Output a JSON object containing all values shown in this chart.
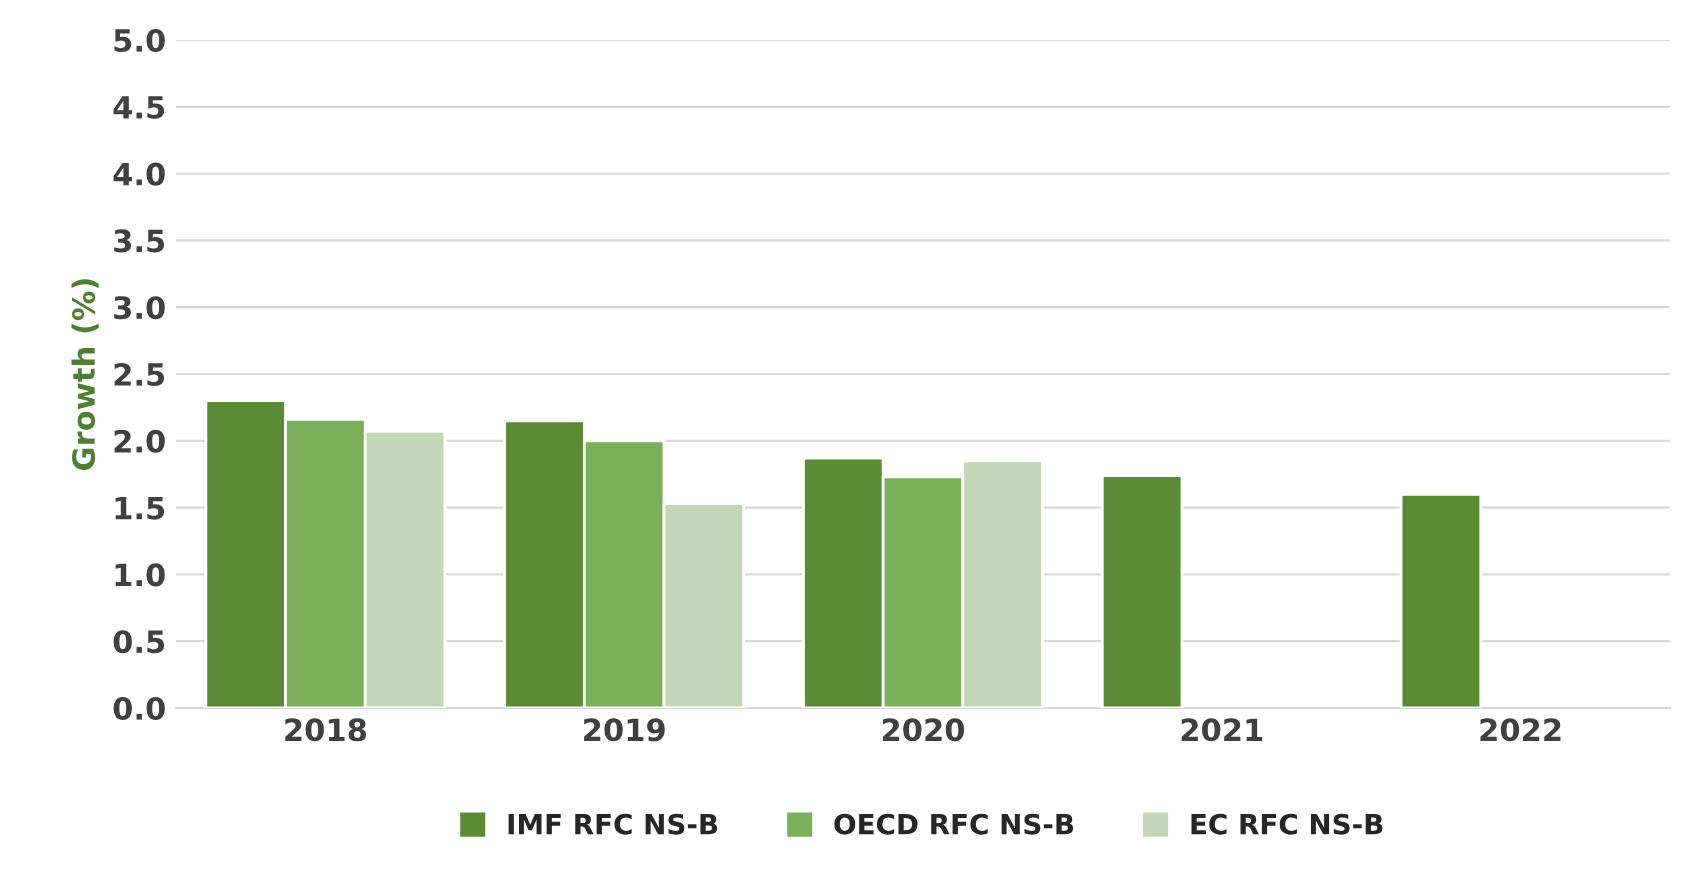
{
  "chart_data": {
    "type": "bar",
    "ylabel": "Growth (%)",
    "categories": [
      "2018",
      "2019",
      "2020",
      "2021",
      "2022"
    ],
    "series": [
      {
        "name": "IMF RFC NS-B",
        "color": "#5b8c35",
        "values": [
          2.3,
          2.15,
          1.87,
          1.74,
          1.6
        ]
      },
      {
        "name": "OECD RFC NS-B",
        "color": "#7ab05a",
        "values": [
          2.16,
          2.0,
          1.73,
          null,
          null
        ]
      },
      {
        "name": "EC RFC NS-B",
        "color": "#c4d6b8",
        "values": [
          2.07,
          1.53,
          1.85,
          null,
          null
        ]
      }
    ],
    "ylim": [
      0,
      5
    ],
    "yticks": [
      {
        "value": 0,
        "label": "0.0"
      },
      {
        "value": 0.5,
        "label": "0.5"
      },
      {
        "value": 1,
        "label": "1.0"
      },
      {
        "value": 1.5,
        "label": "1.5"
      },
      {
        "value": 2,
        "label": "2.0"
      },
      {
        "value": 2.5,
        "label": "2.5"
      },
      {
        "value": 3,
        "label": "3.0"
      },
      {
        "value": 3.5,
        "label": "3.5"
      },
      {
        "value": 4,
        "label": "4.0"
      },
      {
        "value": 4.5,
        "label": "4.5"
      },
      {
        "value": 5,
        "label": "5.0"
      }
    ],
    "grid": "y",
    "legend": "bottom"
  }
}
